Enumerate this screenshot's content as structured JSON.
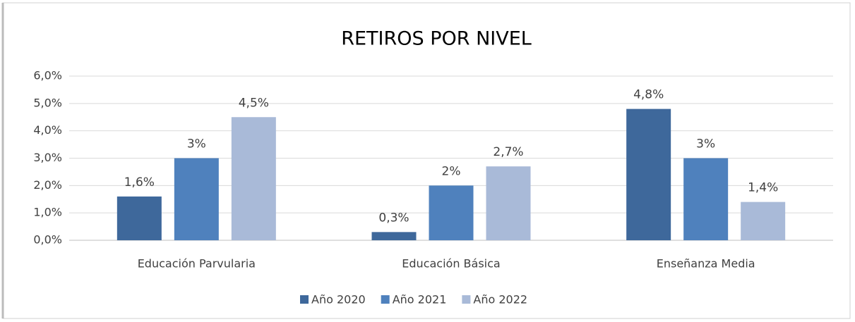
{
  "chart_data": {
    "type": "bar",
    "title": "RETIROS POR NIVEL",
    "categories": [
      "Educación Parvularia",
      "Educación Básica",
      "Enseñanza Media"
    ],
    "series": [
      {
        "name": "Año 2020",
        "color": "#3e689b",
        "values": [
          1.6,
          0.3,
          4.8
        ],
        "value_labels": [
          "1,6%",
          "0,3%",
          "4,8%"
        ]
      },
      {
        "name": "Año 2021",
        "color": "#4f81bd",
        "values": [
          3,
          2,
          3
        ],
        "value_labels": [
          "3%",
          "2%",
          "3%"
        ]
      },
      {
        "name": "Año 2022",
        "color": "#a9bad8",
        "values": [
          4.5,
          2.7,
          1.4
        ],
        "value_labels": [
          "4,5%",
          "2,7%",
          "1,4%"
        ]
      }
    ],
    "ylim": [
      0,
      6
    ],
    "yticks": [
      {
        "value": 0,
        "label": "0,0%"
      },
      {
        "value": 1,
        "label": "1,0%"
      },
      {
        "value": 2,
        "label": "2,0%"
      },
      {
        "value": 3,
        "label": "3,0%"
      },
      {
        "value": 4,
        "label": "4,0%"
      },
      {
        "value": 5,
        "label": "5,0%"
      },
      {
        "value": 6,
        "label": "6,0%"
      }
    ],
    "grid": true,
    "legend": "bottom"
  }
}
